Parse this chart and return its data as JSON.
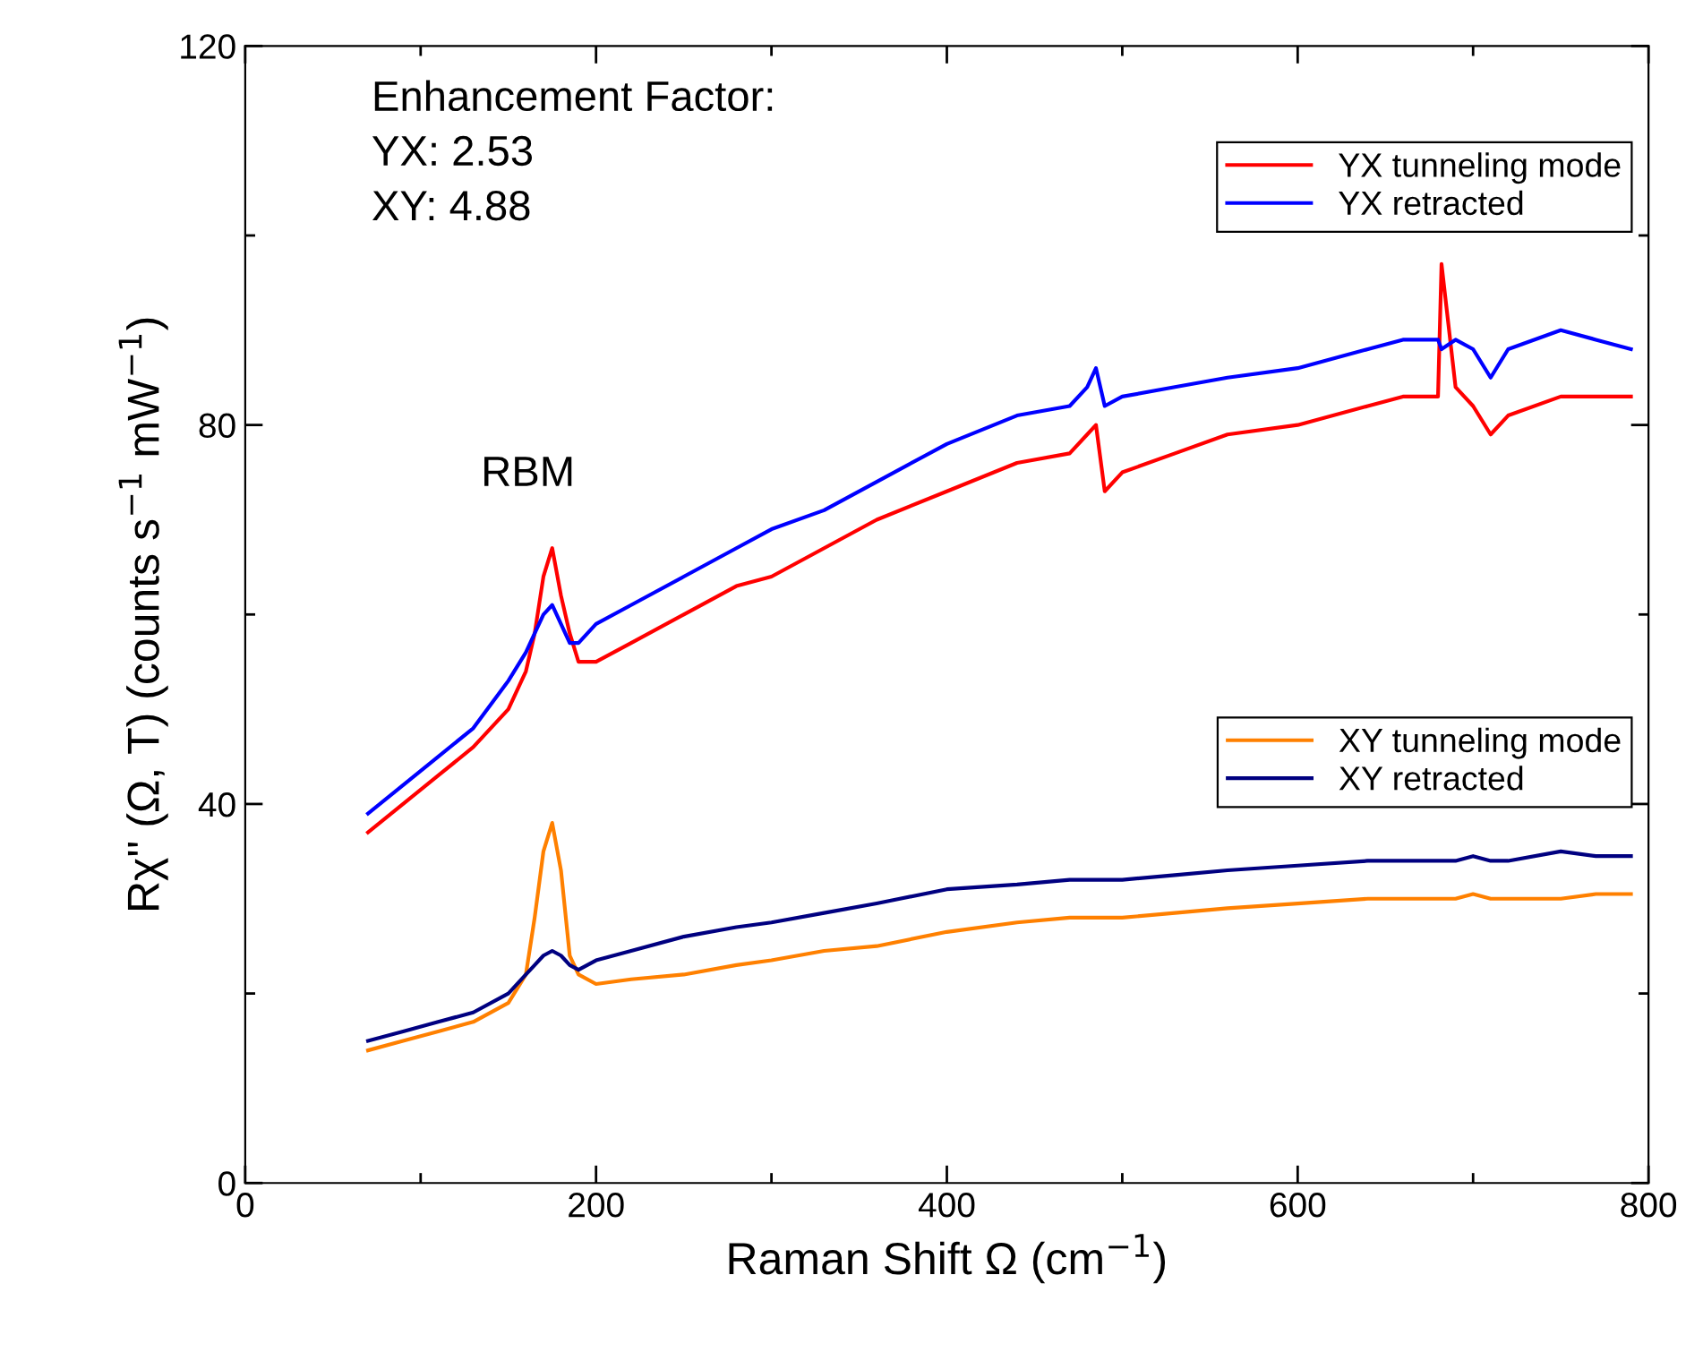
{
  "chart_data": {
    "type": "line",
    "xlabel": "Raman Shift Ω (cm$^{−1}$)",
    "ylabel": "Rχ'' (Ω, T) (counts s$^{−1}$ mW$^{−1}$)",
    "x": [
      70,
      90,
      110,
      130,
      150,
      160,
      165,
      170,
      175,
      180,
      185,
      190,
      200,
      220,
      250,
      280,
      300,
      330,
      360,
      400,
      440,
      470,
      480,
      485,
      490,
      500,
      530,
      560,
      600,
      640,
      660,
      680,
      682,
      690,
      700,
      710,
      720,
      750,
      770,
      790
    ],
    "series": [
      {
        "name": "YX tunneling mode",
        "color": "#ff0000",
        "values": [
          37,
          40,
          43,
          46,
          50,
          54,
          58,
          64,
          67,
          62,
          58,
          55,
          55,
          57,
          60,
          63,
          64,
          67,
          70,
          73,
          76,
          77,
          79,
          80,
          73,
          75,
          77,
          79,
          80,
          82,
          83,
          83,
          97,
          84,
          82,
          79,
          81,
          83,
          83,
          83
        ]
      },
      {
        "name": "YX retracted",
        "color": "#0000ff",
        "values": [
          39,
          42,
          45,
          48,
          53,
          56,
          58,
          60,
          61,
          59,
          57,
          57,
          59,
          61,
          64,
          67,
          69,
          71,
          74,
          78,
          81,
          82,
          84,
          86,
          82,
          83,
          84,
          85,
          86,
          88,
          89,
          89,
          88,
          89,
          88,
          85,
          88,
          90,
          89,
          88
        ]
      },
      {
        "name": "XY tunneling mode",
        "color": "#ff8000",
        "values": [
          14,
          15,
          16,
          17,
          19,
          22,
          28,
          35,
          38,
          33,
          24,
          22,
          21,
          21.5,
          22,
          23,
          23.5,
          24.5,
          25,
          26.5,
          27.5,
          28,
          28,
          28,
          28,
          28,
          28.5,
          29,
          29.5,
          30,
          30,
          30,
          30,
          30,
          30.5,
          30,
          30,
          30,
          30.5,
          30.5
        ]
      },
      {
        "name": "XY retracted",
        "color": "#000080",
        "values": [
          15,
          16,
          17,
          18,
          20,
          22,
          23,
          24,
          24.5,
          24,
          23,
          22.5,
          23.5,
          24.5,
          26,
          27,
          27.5,
          28.5,
          29.5,
          31,
          31.5,
          32,
          32,
          32,
          32,
          32,
          32.5,
          33,
          33.5,
          34,
          34,
          34,
          34,
          34,
          34.5,
          34,
          34,
          35,
          34.5,
          34.5
        ]
      }
    ],
    "xlim": [
      0,
      800
    ],
    "xticks": [
      0,
      200,
      400,
      600,
      800
    ],
    "ylim": [
      0,
      120
    ],
    "yticks": [
      0,
      40,
      80,
      120
    ],
    "annotations": [
      "Enhancement Factor:\nYX: 2.53\nXY: 4.88",
      "RBM"
    ],
    "legend": "top right",
    "grid": false
  }
}
